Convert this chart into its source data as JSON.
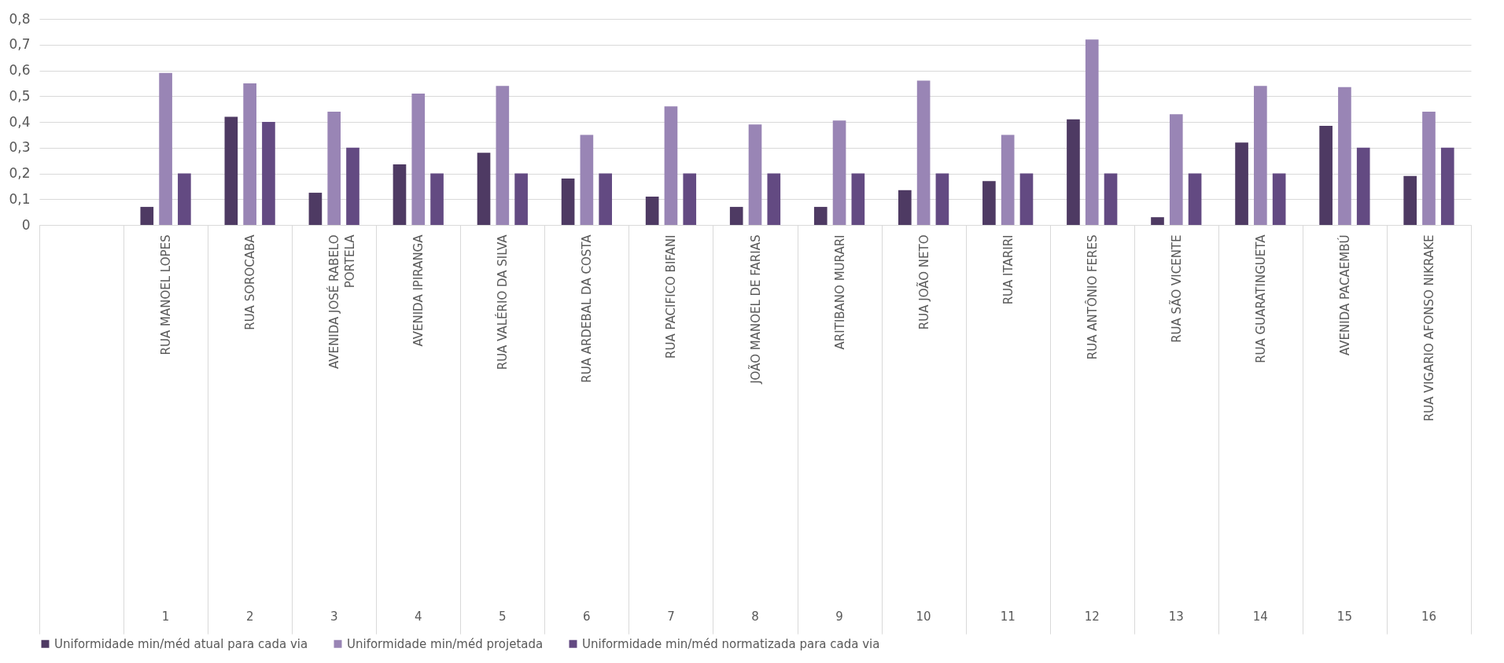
{
  "chart_data": {
    "type": "bar",
    "categories": [
      null,
      "RUA MANOEL LOPES",
      "RUA SOROCABA",
      "AVENIDA JOSÉ RABELO\nPORTELA",
      "AVENIDA IPIRANGA",
      "RUA VALÉRIO DA SILVA",
      "RUA ARDEBAL DA COSTA",
      "RUA PACIFICO BIFANI",
      "JOÃO MANOEL DE FARIAS",
      "ARITIBANO MURARI",
      "RUA JOÃO NETO",
      "RUA ITARIRI",
      "RUA ANTÔNIO FERES",
      "RUA SÃO VICENTE",
      "RUA GUARATINGUETA",
      "AVENIDA PACAEMBÚ",
      "RUA VIGARIO AFONSO NIKRAKE"
    ],
    "series": [
      {
        "name": "Uniformidade min/méd atual para cada via",
        "color": "#4e3a63",
        "values": [
          null,
          0.07,
          0.42,
          0.125,
          0.235,
          0.28,
          0.18,
          0.11,
          0.07,
          0.07,
          0.135,
          0.17,
          0.41,
          0.03,
          0.32,
          0.385,
          0.19
        ]
      },
      {
        "name": "Uniformidade min/méd projetada",
        "color": "#9985b5",
        "values": [
          null,
          0.59,
          0.55,
          0.44,
          0.51,
          0.54,
          0.35,
          0.46,
          0.39,
          0.405,
          0.56,
          0.35,
          0.72,
          0.43,
          0.54,
          0.535,
          0.44
        ]
      },
      {
        "name": "Uniformidade min/méd normatizada para cada via",
        "color": "#634a82",
        "values": [
          null,
          0.2,
          0.4,
          0.3,
          0.2,
          0.2,
          0.2,
          0.2,
          0.2,
          0.2,
          0.2,
          0.2,
          0.2,
          0.2,
          0.2,
          0.3,
          0.3
        ]
      }
    ],
    "ylim": [
      0,
      0.8
    ],
    "yticks": [
      0,
      {
        "value": 0.1,
        "label": "0,1"
      },
      {
        "value": 0.2,
        "label": "0,2"
      },
      {
        "value": 0.3,
        "label": "0,3"
      },
      {
        "value": 0.4,
        "label": "0,4"
      },
      {
        "value": 0.5,
        "label": "0,5"
      },
      {
        "value": 0.6,
        "label": "0,6"
      },
      {
        "value": 0.7,
        "label": "0,7"
      },
      {
        "value": 0.8,
        "label": "0,8"
      }
    ],
    "grid": "y",
    "legend": "bottom",
    "annotations": [
      "1",
      "2",
      "3",
      "4",
      "5",
      "6",
      "7",
      "8",
      "9",
      "10",
      "11",
      "12",
      "13",
      "14",
      "15",
      "16"
    ]
  }
}
